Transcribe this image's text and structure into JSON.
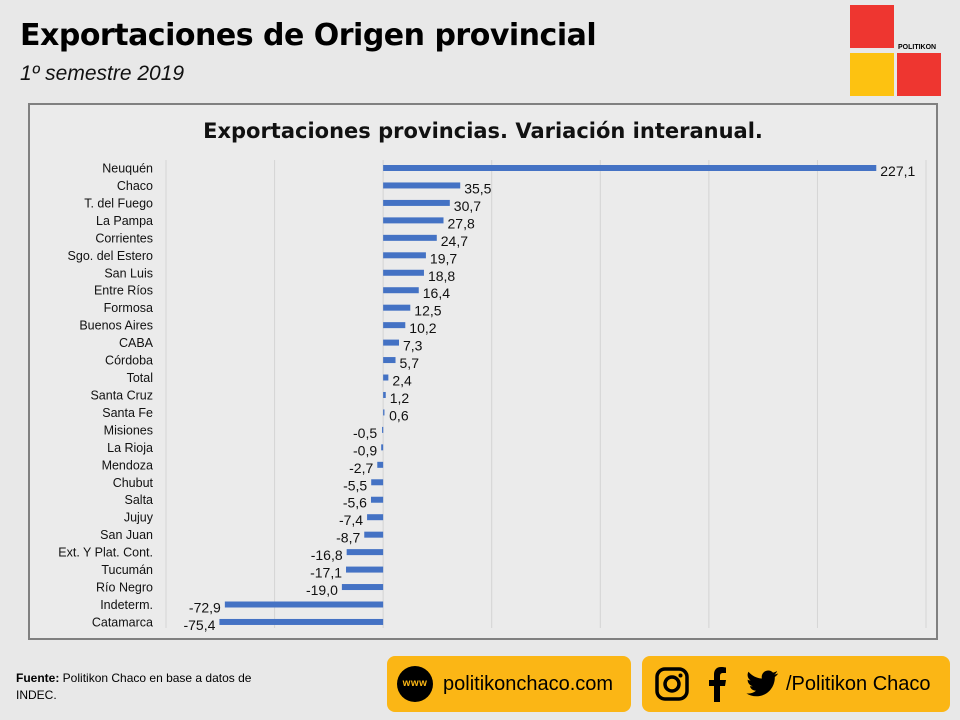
{
  "header": {
    "title": "Exportaciones de Origen provincial",
    "subtitle": "1º semestre 2019",
    "logo_text": "POLITIKON"
  },
  "footer": {
    "source_bold": "Fuente:",
    "source_text": " Politikon Chaco en base a datos de INDEC.",
    "website": "politikonchaco.com",
    "social_handle": "/Politikon Chaco",
    "www_label": "www"
  },
  "colors": {
    "bar": "#4472c4",
    "logo_red": "#ee3630",
    "logo_yellow": "#fdc211",
    "badge": "#fbb615"
  },
  "chart_data": {
    "type": "bar",
    "orientation": "horizontal",
    "title": "Exportaciones provincias. Variación interanual.",
    "categories": [
      "Neuquén",
      "Chaco",
      "T. del Fuego",
      "La Pampa",
      "Corrientes",
      "Sgo. del Estero",
      "San Luis",
      "Entre Ríos",
      "Formosa",
      "Buenos Aires",
      "CABA",
      "Córdoba",
      "Total",
      "Santa Cruz",
      "Santa Fe",
      "Misiones",
      "La Rioja",
      "Mendoza",
      "Chubut",
      "Salta",
      "Jujuy",
      "San Juan",
      "Ext. Y Plat.  Cont.",
      "Tucumán",
      "Río Negro",
      "Indeterm.",
      "Catamarca"
    ],
    "values": [
      227.1,
      35.5,
      30.7,
      27.8,
      24.7,
      19.7,
      18.8,
      16.4,
      12.5,
      10.2,
      7.3,
      5.7,
      2.4,
      1.2,
      0.6,
      -0.5,
      -0.9,
      -2.7,
      -5.5,
      -5.6,
      -7.4,
      -8.7,
      -16.8,
      -17.1,
      -19.0,
      -72.9,
      -75.4
    ],
    "labels": [
      "227,1",
      "35,5",
      "30,7",
      "27,8",
      "24,7",
      "19,7",
      "18,8",
      "16,4",
      "12,5",
      "10,2",
      "7,3",
      "5,7",
      "2,4",
      "1,2",
      "0,6",
      "-0,5",
      "-0,9",
      "-2,7",
      "-5,5",
      "-5,6",
      "-7,4",
      "-8,7",
      "-16,8",
      "-17,1",
      "-19,0",
      "-72,9",
      "-75,4"
    ],
    "xlim": [
      -100,
      250
    ],
    "gridlines": true,
    "legend": false
  }
}
